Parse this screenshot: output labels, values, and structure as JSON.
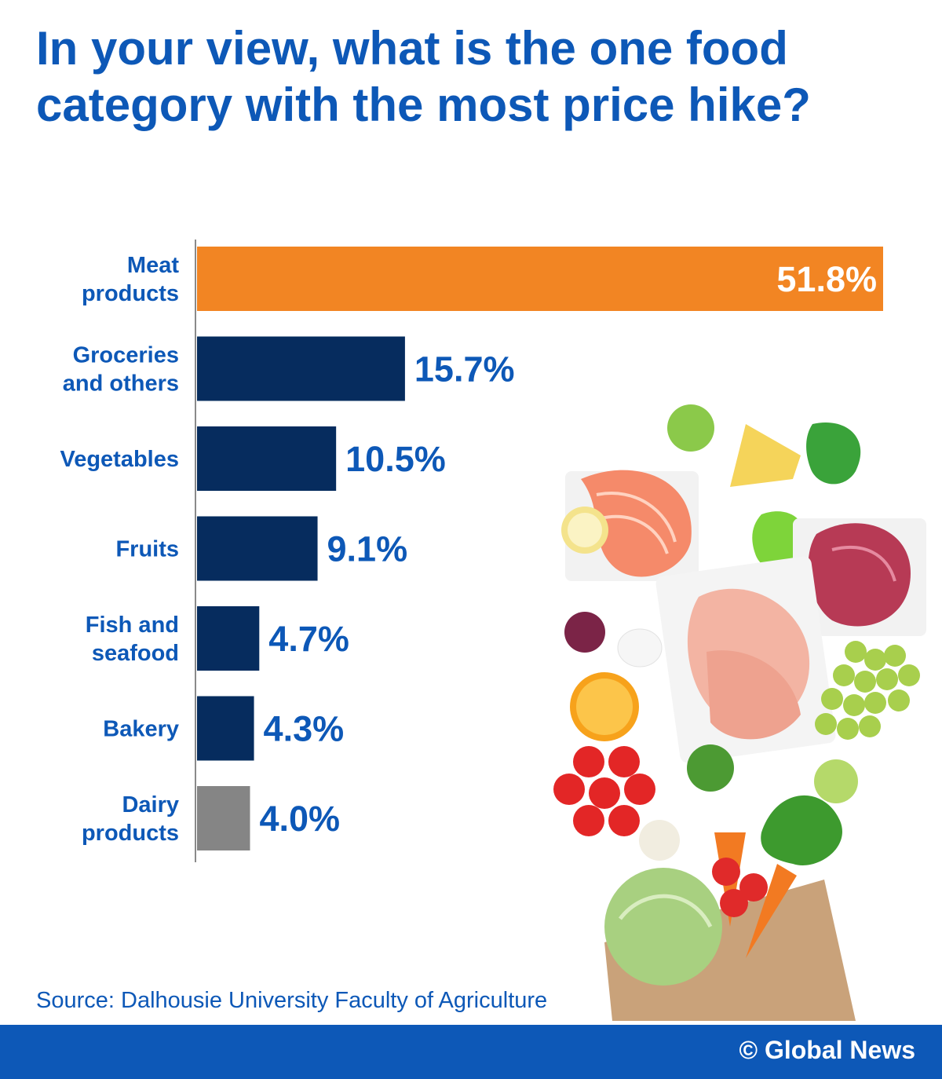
{
  "title": "In your view, what is the one food category with the most price hike?",
  "source": "Source: Dalhousie University Faculty of Agriculture",
  "credit": "© Global News",
  "colors": {
    "title": "#0d58b7",
    "highlight_bar": "#f28523",
    "main_bar": "#062c5e",
    "other_bar": "#858585",
    "footer": "#0d58b7"
  },
  "chart_data": {
    "type": "bar",
    "orientation": "horizontal",
    "categories": [
      [
        "Meat",
        "products"
      ],
      [
        "Groceries",
        "and others"
      ],
      [
        "Vegetables"
      ],
      [
        "Fruits"
      ],
      [
        "Fish and",
        "seafood"
      ],
      [
        "Bakery"
      ],
      [
        "Dairy",
        "products"
      ]
    ],
    "values": [
      51.8,
      15.7,
      10.5,
      9.1,
      4.7,
      4.3,
      4.0
    ],
    "value_labels": [
      "51.8%",
      "15.7%",
      "10.5%",
      "9.1%",
      "4.7%",
      "4.3%",
      "4.0%"
    ],
    "bar_colors": [
      "#f28523",
      "#062c5e",
      "#062c5e",
      "#062c5e",
      "#062c5e",
      "#062c5e",
      "#858585"
    ],
    "xlim": [
      0,
      51.8
    ],
    "grid": false,
    "legend": "none"
  }
}
